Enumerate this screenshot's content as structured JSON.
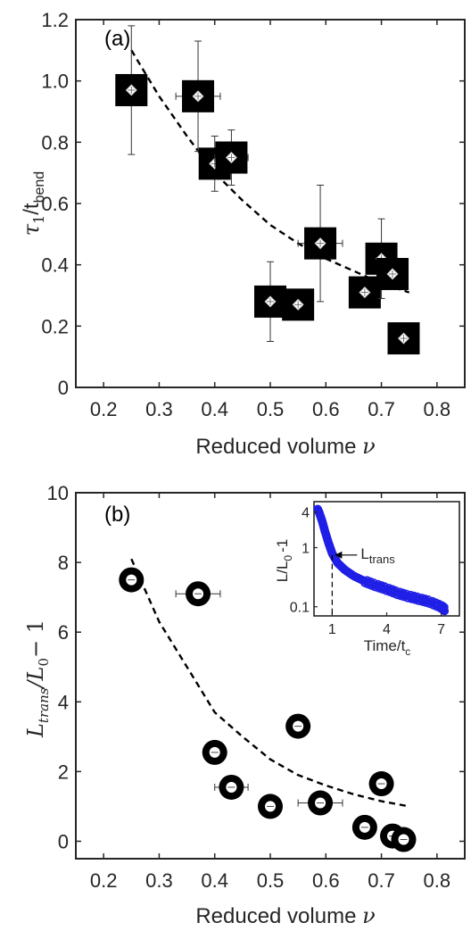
{
  "chart_data": [
    {
      "type": "scatter",
      "panel_label": "(a)",
      "xlabel": "Reduced volume",
      "xlabel_symbol": "ν",
      "ylabel_main": "τ",
      "ylabel_sub1": "1",
      "ylabel_mid": "/t",
      "ylabel_sub2": "bend",
      "xlim": [
        0.15,
        0.85
      ],
      "ylim": [
        0,
        1.2
      ],
      "xticks": [
        "0.2",
        "0.3",
        "0.4",
        "0.5",
        "0.6",
        "0.7",
        "0.8"
      ],
      "yticks": [
        "0",
        "0.2",
        "0.4",
        "0.6",
        "0.8",
        "1.0",
        "1.2"
      ],
      "points": [
        {
          "x": 0.25,
          "y": 0.97,
          "xerr": 0.0,
          "yerr": 0.21
        },
        {
          "x": 0.37,
          "y": 0.95,
          "xerr": 0.04,
          "yerr": 0.18
        },
        {
          "x": 0.4,
          "y": 0.73,
          "xerr": 0.0,
          "yerr": 0.09
        },
        {
          "x": 0.43,
          "y": 0.75,
          "xerr": 0.03,
          "yerr": 0.09
        },
        {
          "x": 0.5,
          "y": 0.28,
          "xerr": 0.0,
          "yerr": 0.13
        },
        {
          "x": 0.55,
          "y": 0.27,
          "xerr": 0.0,
          "yerr": 0.0
        },
        {
          "x": 0.59,
          "y": 0.47,
          "xerr": 0.04,
          "yerr": 0.19
        },
        {
          "x": 0.67,
          "y": 0.31,
          "xerr": 0.0,
          "yerr": 0.0
        },
        {
          "x": 0.7,
          "y": 0.42,
          "xerr": 0.0,
          "yerr": 0.13
        },
        {
          "x": 0.72,
          "y": 0.37,
          "xerr": 0.0,
          "yerr": 0.0
        },
        {
          "x": 0.74,
          "y": 0.16,
          "xerr": 0.0,
          "yerr": 0.0
        }
      ],
      "fit_line": {
        "x": [
          0.25,
          0.3,
          0.35,
          0.4,
          0.45,
          0.5,
          0.55,
          0.6,
          0.65,
          0.7,
          0.75
        ],
        "y": [
          1.1,
          0.95,
          0.82,
          0.7,
          0.61,
          0.53,
          0.47,
          0.42,
          0.38,
          0.34,
          0.31
        ]
      }
    },
    {
      "type": "scatter",
      "panel_label": "(b)",
      "xlabel": "Reduced volume",
      "xlabel_symbol": "ν",
      "ylabel_L": "L",
      "ylabel_sub": "trans",
      "ylabel_rest": "/L",
      "ylabel_sub0": "0",
      "ylabel_tail": "− 1",
      "xlim": [
        0.15,
        0.85
      ],
      "ylim": [
        -0.5,
        10
      ],
      "xticks": [
        "0.2",
        "0.3",
        "0.4",
        "0.5",
        "0.6",
        "0.7",
        "0.8"
      ],
      "yticks": [
        "0",
        "2",
        "4",
        "6",
        "8",
        "10"
      ],
      "points": [
        {
          "x": 0.25,
          "y": 7.5,
          "xerr": 0.02,
          "yerr": 0.0
        },
        {
          "x": 0.37,
          "y": 7.1,
          "xerr": 0.04,
          "yerr": 0.0
        },
        {
          "x": 0.4,
          "y": 2.55,
          "xerr": 0.0,
          "yerr": 0.0
        },
        {
          "x": 0.43,
          "y": 1.55,
          "xerr": 0.03,
          "yerr": 0.0
        },
        {
          "x": 0.5,
          "y": 1.0,
          "xerr": 0.0,
          "yerr": 0.0
        },
        {
          "x": 0.55,
          "y": 3.3,
          "xerr": 0.0,
          "yerr": 0.0
        },
        {
          "x": 0.59,
          "y": 1.1,
          "xerr": 0.04,
          "yerr": 0.0
        },
        {
          "x": 0.67,
          "y": 0.4,
          "xerr": 0.0,
          "yerr": 0.0
        },
        {
          "x": 0.7,
          "y": 1.65,
          "xerr": 0.0,
          "yerr": 0.0
        },
        {
          "x": 0.72,
          "y": 0.15,
          "xerr": 0.0,
          "yerr": 0.0
        },
        {
          "x": 0.74,
          "y": 0.05,
          "xerr": 0.0,
          "yerr": 0.0
        }
      ],
      "fit_line": {
        "x": [
          0.25,
          0.3,
          0.35,
          0.4,
          0.45,
          0.5,
          0.55,
          0.6,
          0.65,
          0.7,
          0.75
        ],
        "y": [
          8.1,
          6.3,
          5.0,
          3.7,
          3.0,
          2.35,
          1.9,
          1.6,
          1.35,
          1.15,
          1.0
        ]
      }
    },
    {
      "type": "scatter",
      "role": "inset",
      "ylabel": "L/L",
      "ylabel_sub": "0",
      "ylabel_tail": "-1",
      "xlabel": "Time/t",
      "xlabel_sub": "c",
      "yscale": "log",
      "xlim": [
        0,
        8
      ],
      "ylim": [
        0.07,
        6
      ],
      "xticks": [
        "1",
        "4",
        "7"
      ],
      "xtick_values": [
        1,
        4,
        7
      ],
      "yticks": [
        "0.1",
        "1",
        "4"
      ],
      "ytick_values": [
        0.1,
        1,
        4
      ],
      "annotation": "L",
      "annotation_sub": "trans",
      "annotation_at": {
        "x": 1,
        "y": 0.75
      },
      "series_color": "#1f1fe6",
      "curve": {
        "x": [
          0.2,
          0.3,
          0.45,
          0.6,
          0.8,
          1.0,
          1.3,
          1.7,
          2.2,
          2.8,
          3.4,
          4.0,
          4.6,
          5.2,
          5.8,
          6.4,
          7.0,
          7.2
        ],
        "y": [
          4.5,
          3.8,
          2.8,
          1.9,
          1.2,
          0.8,
          0.55,
          0.42,
          0.33,
          0.27,
          0.23,
          0.2,
          0.17,
          0.15,
          0.135,
          0.12,
          0.1,
          0.09
        ]
      }
    }
  ]
}
